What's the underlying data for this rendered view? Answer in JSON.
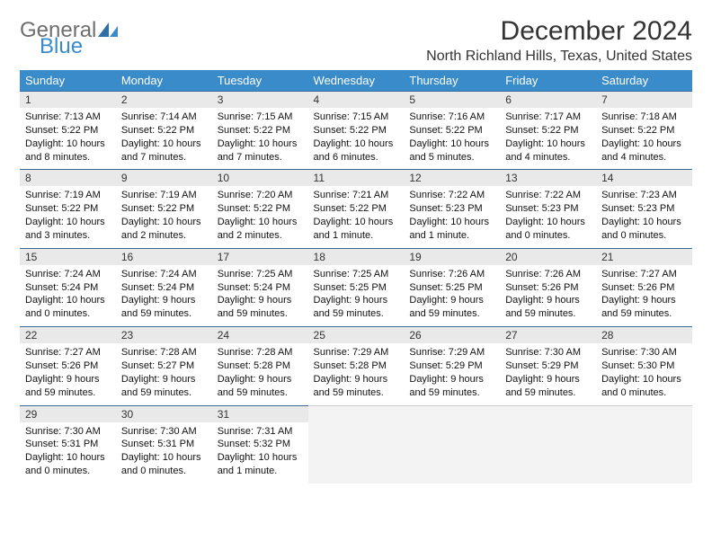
{
  "logo": {
    "word1": "General",
    "word2": "Blue"
  },
  "title": "December 2024",
  "location": "North Richland Hills, Texas, United States",
  "colors": {
    "header_bg": "#3a8bc9",
    "header_fg": "#ffffff",
    "daynum_bg": "#e9e9e9",
    "daynum_border": "#3a6a9a",
    "empty_bg": "#f3f3f3",
    "text": "#111111",
    "logo_gray": "#6e6e6e",
    "logo_blue": "#3a8bc9"
  },
  "weekdays": [
    "Sunday",
    "Monday",
    "Tuesday",
    "Wednesday",
    "Thursday",
    "Friday",
    "Saturday"
  ],
  "weeks": [
    [
      {
        "n": "1",
        "sr": "Sunrise: 7:13 AM",
        "ss": "Sunset: 5:22 PM",
        "dl": "Daylight: 10 hours and 8 minutes."
      },
      {
        "n": "2",
        "sr": "Sunrise: 7:14 AM",
        "ss": "Sunset: 5:22 PM",
        "dl": "Daylight: 10 hours and 7 minutes."
      },
      {
        "n": "3",
        "sr": "Sunrise: 7:15 AM",
        "ss": "Sunset: 5:22 PM",
        "dl": "Daylight: 10 hours and 7 minutes."
      },
      {
        "n": "4",
        "sr": "Sunrise: 7:15 AM",
        "ss": "Sunset: 5:22 PM",
        "dl": "Daylight: 10 hours and 6 minutes."
      },
      {
        "n": "5",
        "sr": "Sunrise: 7:16 AM",
        "ss": "Sunset: 5:22 PM",
        "dl": "Daylight: 10 hours and 5 minutes."
      },
      {
        "n": "6",
        "sr": "Sunrise: 7:17 AM",
        "ss": "Sunset: 5:22 PM",
        "dl": "Daylight: 10 hours and 4 minutes."
      },
      {
        "n": "7",
        "sr": "Sunrise: 7:18 AM",
        "ss": "Sunset: 5:22 PM",
        "dl": "Daylight: 10 hours and 4 minutes."
      }
    ],
    [
      {
        "n": "8",
        "sr": "Sunrise: 7:19 AM",
        "ss": "Sunset: 5:22 PM",
        "dl": "Daylight: 10 hours and 3 minutes."
      },
      {
        "n": "9",
        "sr": "Sunrise: 7:19 AM",
        "ss": "Sunset: 5:22 PM",
        "dl": "Daylight: 10 hours and 2 minutes."
      },
      {
        "n": "10",
        "sr": "Sunrise: 7:20 AM",
        "ss": "Sunset: 5:22 PM",
        "dl": "Daylight: 10 hours and 2 minutes."
      },
      {
        "n": "11",
        "sr": "Sunrise: 7:21 AM",
        "ss": "Sunset: 5:22 PM",
        "dl": "Daylight: 10 hours and 1 minute."
      },
      {
        "n": "12",
        "sr": "Sunrise: 7:22 AM",
        "ss": "Sunset: 5:23 PM",
        "dl": "Daylight: 10 hours and 1 minute."
      },
      {
        "n": "13",
        "sr": "Sunrise: 7:22 AM",
        "ss": "Sunset: 5:23 PM",
        "dl": "Daylight: 10 hours and 0 minutes."
      },
      {
        "n": "14",
        "sr": "Sunrise: 7:23 AM",
        "ss": "Sunset: 5:23 PM",
        "dl": "Daylight: 10 hours and 0 minutes."
      }
    ],
    [
      {
        "n": "15",
        "sr": "Sunrise: 7:24 AM",
        "ss": "Sunset: 5:24 PM",
        "dl": "Daylight: 10 hours and 0 minutes."
      },
      {
        "n": "16",
        "sr": "Sunrise: 7:24 AM",
        "ss": "Sunset: 5:24 PM",
        "dl": "Daylight: 9 hours and 59 minutes."
      },
      {
        "n": "17",
        "sr": "Sunrise: 7:25 AM",
        "ss": "Sunset: 5:24 PM",
        "dl": "Daylight: 9 hours and 59 minutes."
      },
      {
        "n": "18",
        "sr": "Sunrise: 7:25 AM",
        "ss": "Sunset: 5:25 PM",
        "dl": "Daylight: 9 hours and 59 minutes."
      },
      {
        "n": "19",
        "sr": "Sunrise: 7:26 AM",
        "ss": "Sunset: 5:25 PM",
        "dl": "Daylight: 9 hours and 59 minutes."
      },
      {
        "n": "20",
        "sr": "Sunrise: 7:26 AM",
        "ss": "Sunset: 5:26 PM",
        "dl": "Daylight: 9 hours and 59 minutes."
      },
      {
        "n": "21",
        "sr": "Sunrise: 7:27 AM",
        "ss": "Sunset: 5:26 PM",
        "dl": "Daylight: 9 hours and 59 minutes."
      }
    ],
    [
      {
        "n": "22",
        "sr": "Sunrise: 7:27 AM",
        "ss": "Sunset: 5:26 PM",
        "dl": "Daylight: 9 hours and 59 minutes."
      },
      {
        "n": "23",
        "sr": "Sunrise: 7:28 AM",
        "ss": "Sunset: 5:27 PM",
        "dl": "Daylight: 9 hours and 59 minutes."
      },
      {
        "n": "24",
        "sr": "Sunrise: 7:28 AM",
        "ss": "Sunset: 5:28 PM",
        "dl": "Daylight: 9 hours and 59 minutes."
      },
      {
        "n": "25",
        "sr": "Sunrise: 7:29 AM",
        "ss": "Sunset: 5:28 PM",
        "dl": "Daylight: 9 hours and 59 minutes."
      },
      {
        "n": "26",
        "sr": "Sunrise: 7:29 AM",
        "ss": "Sunset: 5:29 PM",
        "dl": "Daylight: 9 hours and 59 minutes."
      },
      {
        "n": "27",
        "sr": "Sunrise: 7:30 AM",
        "ss": "Sunset: 5:29 PM",
        "dl": "Daylight: 9 hours and 59 minutes."
      },
      {
        "n": "28",
        "sr": "Sunrise: 7:30 AM",
        "ss": "Sunset: 5:30 PM",
        "dl": "Daylight: 10 hours and 0 minutes."
      }
    ],
    [
      {
        "n": "29",
        "sr": "Sunrise: 7:30 AM",
        "ss": "Sunset: 5:31 PM",
        "dl": "Daylight: 10 hours and 0 minutes."
      },
      {
        "n": "30",
        "sr": "Sunrise: 7:30 AM",
        "ss": "Sunset: 5:31 PM",
        "dl": "Daylight: 10 hours and 0 minutes."
      },
      {
        "n": "31",
        "sr": "Sunrise: 7:31 AM",
        "ss": "Sunset: 5:32 PM",
        "dl": "Daylight: 10 hours and 1 minute."
      },
      null,
      null,
      null,
      null
    ]
  ]
}
